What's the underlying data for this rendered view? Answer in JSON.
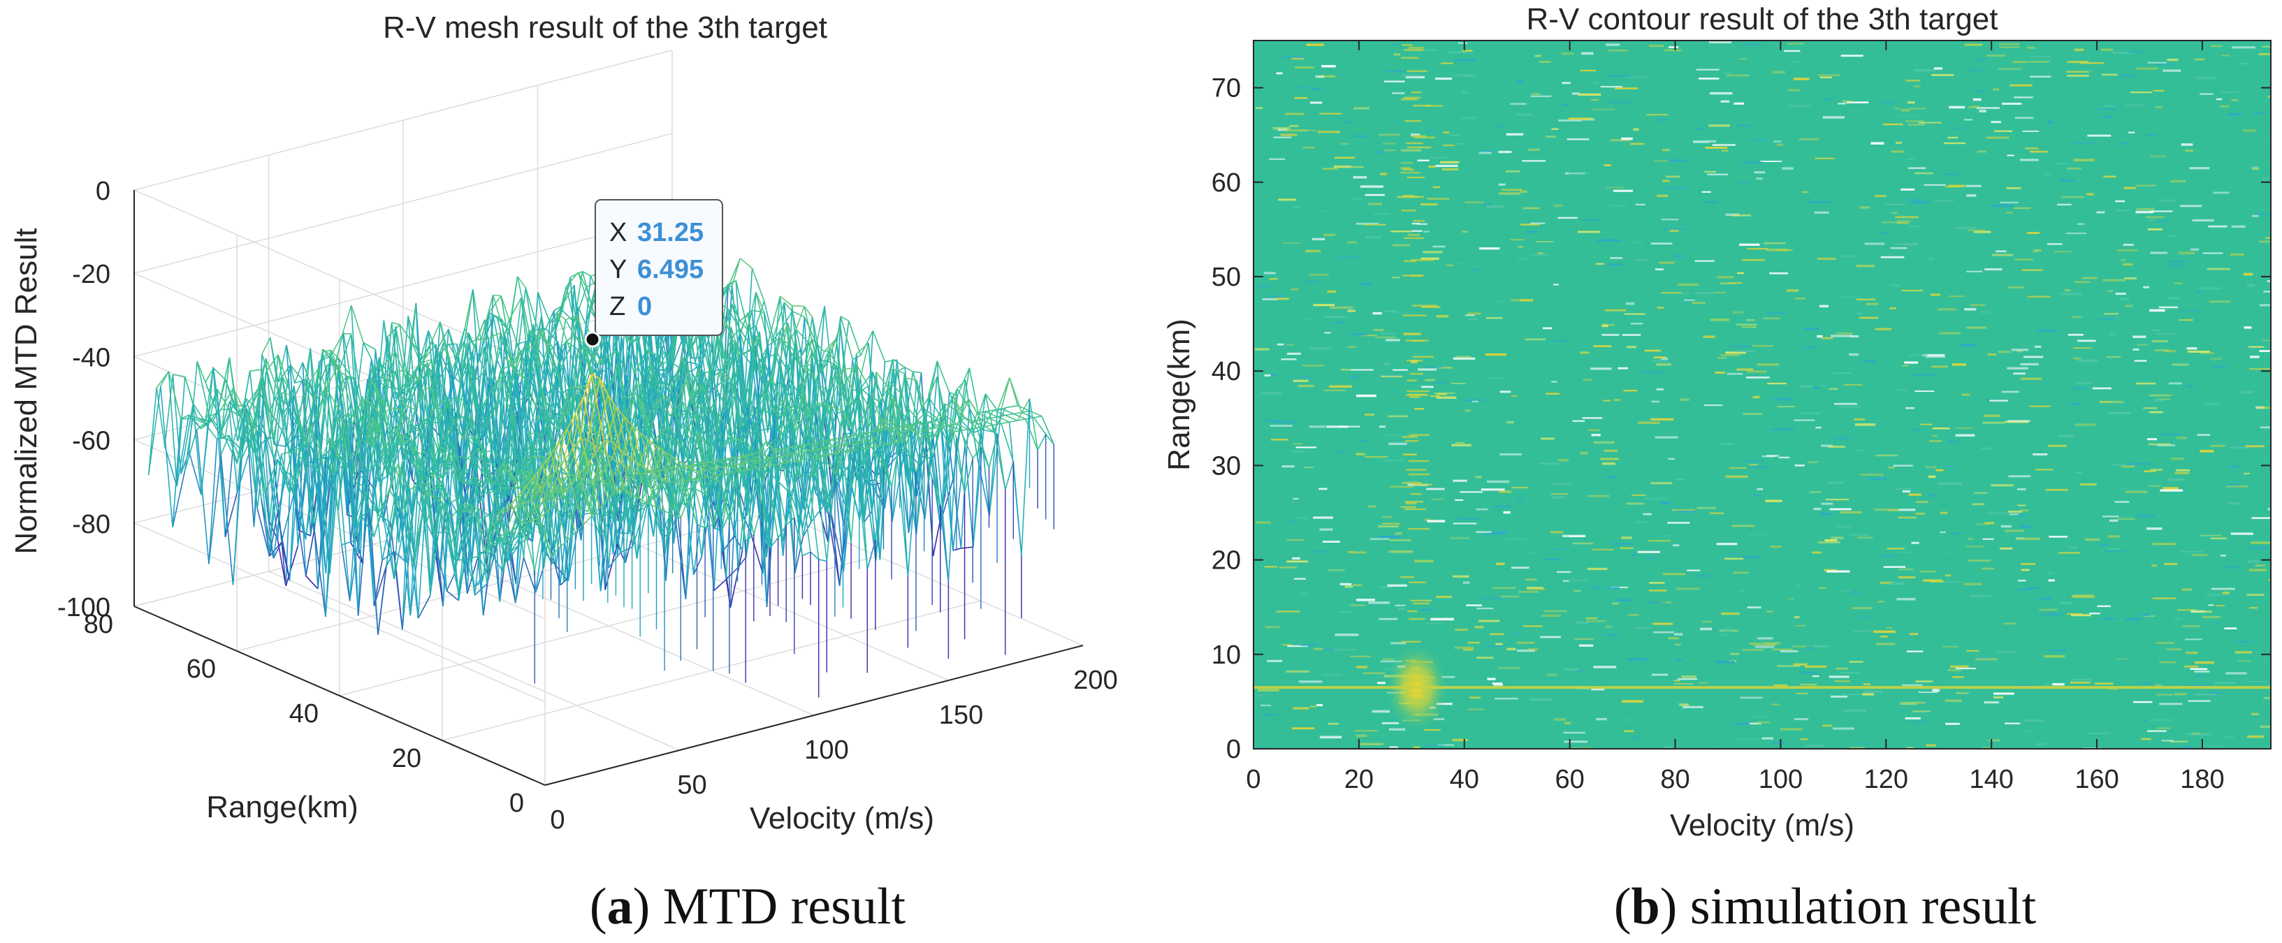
{
  "chart_data": [
    {
      "id": "a",
      "type": "surface-mesh",
      "title": "R-V mesh result of the 3th target",
      "xlabel": "Velocity (m/s)",
      "ylabel": "Range(km)",
      "zlabel": "Normalized MTD Result",
      "xlim": [
        0,
        200
      ],
      "ylim": [
        0,
        80
      ],
      "zlim": [
        -100,
        0
      ],
      "xticks": [
        0,
        50,
        100,
        150,
        200
      ],
      "yticks": [
        0,
        20,
        40,
        60,
        80
      ],
      "zticks": [
        0,
        -20,
        -40,
        -60,
        -80,
        -100
      ],
      "peak": {
        "x": 31.25,
        "y": 6.495,
        "z": 0
      },
      "noise_floor": -45,
      "noise_min": -90,
      "colormap": [
        "#3e26a8",
        "#1fa5c8",
        "#39c196",
        "#9cd05c",
        "#f1d430"
      ],
      "datatip": {
        "x_label": "X",
        "x_value": "31.25",
        "y_label": "Y",
        "y_value": "6.495",
        "z_label": "Z",
        "z_value": "0"
      },
      "caption": {
        "letter": "a",
        "text": "MTD result"
      }
    },
    {
      "id": "b",
      "type": "contour",
      "title": "R-V contour result of the 3th target",
      "xlabel": "Velocity (m/s)",
      "ylabel": "Range(km)",
      "xlim": [
        0,
        193
      ],
      "ylim": [
        0,
        75
      ],
      "xticks": [
        0,
        20,
        40,
        60,
        80,
        100,
        120,
        140,
        160,
        180
      ],
      "yticks": [
        0,
        10,
        20,
        30,
        40,
        50,
        60,
        70
      ],
      "background": "#33be98",
      "target_line_range": 6.5,
      "target": {
        "velocity": 31,
        "range": 6.5
      },
      "caption": {
        "letter": "b",
        "text": "simulation result"
      }
    }
  ]
}
